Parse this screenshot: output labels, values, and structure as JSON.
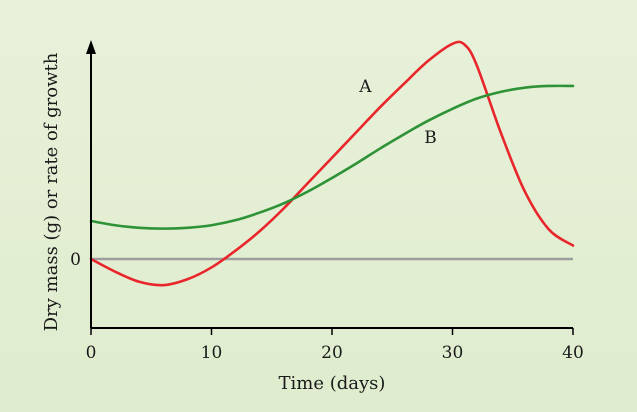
{
  "chart_data": {
    "type": "line",
    "title": "",
    "xlabel": "Time (days)",
    "ylabel": "Dry mass (g) or rate of growth",
    "xlim": [
      0,
      40
    ],
    "x_ticks": [
      "0",
      "10",
      "20",
      "30",
      "40"
    ],
    "y_ticks": [
      "0"
    ],
    "grid": false,
    "legend": "none",
    "reference_line": {
      "y": 0,
      "color": "#9e9e9e"
    },
    "series": [
      {
        "label": "A",
        "color": "#e8262b",
        "x": [
          0,
          2,
          4,
          6,
          8,
          10,
          12,
          14,
          16,
          18,
          20,
          22,
          24,
          26,
          28,
          30,
          31,
          32,
          34,
          36,
          38,
          40
        ],
        "y": [
          0,
          -0.15,
          -0.27,
          -0.31,
          -0.24,
          -0.1,
          0.1,
          0.33,
          0.6,
          0.9,
          1.2,
          1.5,
          1.8,
          2.08,
          2.35,
          2.55,
          2.54,
          2.3,
          1.5,
          0.8,
          0.35,
          0.16
        ]
      },
      {
        "label": "B",
        "color": "#2e9236",
        "x": [
          0,
          2,
          4,
          6,
          8,
          10,
          12,
          14,
          16,
          18,
          20,
          22,
          24,
          26,
          28,
          30,
          32,
          34,
          36,
          38,
          40
        ],
        "y": [
          0.45,
          0.4,
          0.37,
          0.36,
          0.37,
          0.4,
          0.46,
          0.55,
          0.66,
          0.8,
          0.96,
          1.13,
          1.31,
          1.48,
          1.64,
          1.78,
          1.9,
          1.98,
          2.03,
          2.05,
          2.05
        ]
      }
    ]
  },
  "colors": {
    "background": "#e3eed4",
    "axis": "#000000",
    "series_a": "#e8262b",
    "series_b": "#2e9236",
    "zero_line": "#9e9e9e"
  }
}
